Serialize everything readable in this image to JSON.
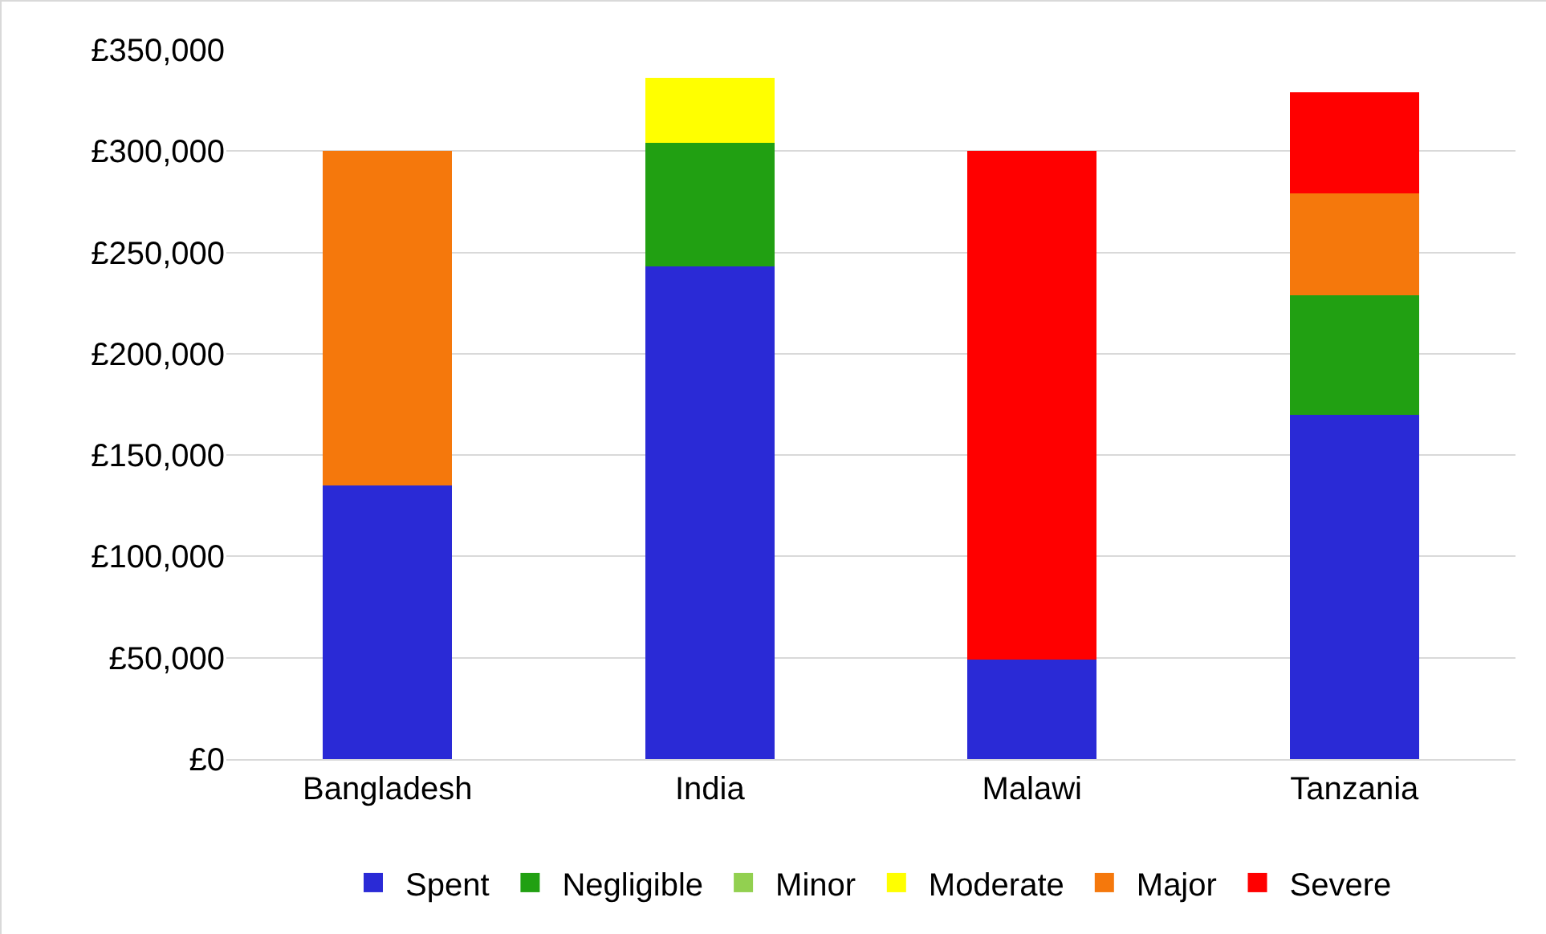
{
  "chart_data": {
    "type": "bar",
    "stacked": true,
    "categories": [
      "Bangladesh",
      "India",
      "Malawi",
      "Tanzania"
    ],
    "series": [
      {
        "name": "Spent",
        "color": "#2a2ad6",
        "values": [
          135000,
          243000,
          49000,
          170000
        ]
      },
      {
        "name": "Negligible",
        "color": "#21a012",
        "values": [
          null,
          61000,
          null,
          59000
        ]
      },
      {
        "name": "Minor",
        "color": "#92d050",
        "values": [
          null,
          null,
          null,
          null
        ]
      },
      {
        "name": "Moderate",
        "color": "#ffff00",
        "values": [
          null,
          32000,
          null,
          null
        ]
      },
      {
        "name": "Major",
        "color": "#f5780c",
        "values": [
          165000,
          null,
          null,
          50000
        ]
      },
      {
        "name": "Severe",
        "color": "#ff0000",
        "values": [
          null,
          null,
          251000,
          50000
        ]
      }
    ],
    "ylim": [
      0,
      350000
    ],
    "yticks": [
      {
        "value": 0,
        "label": "£0"
      },
      {
        "value": 50000,
        "label": "£50,000"
      },
      {
        "value": 100000,
        "label": "£100,000"
      },
      {
        "value": 150000,
        "label": "£150,000"
      },
      {
        "value": 200000,
        "label": "£200,000"
      },
      {
        "value": 250000,
        "label": "£250,000"
      },
      {
        "value": 300000,
        "label": "£300,000"
      },
      {
        "value": 350000,
        "label": "£350,000"
      }
    ],
    "grid": "y",
    "legend": "bottom"
  }
}
